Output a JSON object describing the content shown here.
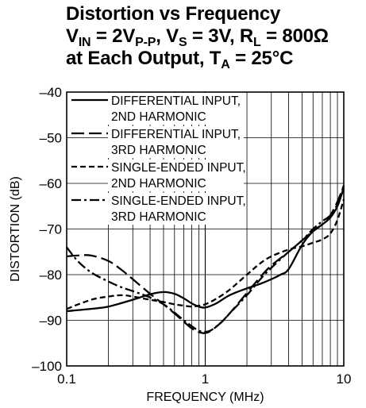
{
  "title": {
    "line1": "Distortion vs Frequency",
    "line2_prefix": "V",
    "line2_sub_in": "IN",
    "line2_mid": " = 2V",
    "line2_sub_pp": "P-P",
    "line2_mid2": ", V",
    "line2_sub_s": "S",
    "line2_mid3": " = 3V, R",
    "line2_sub_l": "L",
    "line2_end": " = 800Ω",
    "line3_prefix": "at Each Output, T",
    "line3_sub_a": "A",
    "line3_end": " = 25°C"
  },
  "chart_data": {
    "type": "line",
    "title": "Distortion vs Frequency",
    "xlabel": "FREQUENCY (MHz)",
    "ylabel": "DISTORTION (dB)",
    "xscale": "log",
    "xlim": [
      0.1,
      10
    ],
    "ylim": [
      -100,
      -40
    ],
    "grid": true,
    "legend_position": "top-left",
    "x_ticks": [
      {
        "value": 0.1,
        "label": "0.1"
      },
      {
        "value": 1,
        "label": "1"
      },
      {
        "value": 10,
        "label": "10"
      }
    ],
    "y_ticks": [
      {
        "value": -40,
        "label": "–40"
      },
      {
        "value": -50,
        "label": "–50"
      },
      {
        "value": -60,
        "label": "–60"
      },
      {
        "value": -70,
        "label": "–70"
      },
      {
        "value": -80,
        "label": "–80"
      },
      {
        "value": -90,
        "label": "–90"
      },
      {
        "value": -100,
        "label": "–100"
      }
    ],
    "series": [
      {
        "name": "DIFFERENTIAL INPUT, 2ND HARMONIC",
        "label_line1": "DIFFERENTIAL INPUT,",
        "label_line2": "2ND HARMONIC",
        "dash": "",
        "x": [
          0.1,
          0.15,
          0.2,
          0.3,
          0.4,
          0.5,
          0.6,
          0.7,
          0.8,
          0.9,
          1,
          1.2,
          1.5,
          2,
          2.5,
          3,
          3.5,
          4,
          5,
          6,
          7,
          8,
          9,
          10
        ],
        "y": [
          -88,
          -87.5,
          -87,
          -85.5,
          -84.3,
          -83.8,
          -84.2,
          -85.2,
          -86.3,
          -87,
          -87.2,
          -86.3,
          -84.5,
          -83,
          -82,
          -81,
          -80,
          -78.8,
          -73.5,
          -70.5,
          -69,
          -67.5,
          -65,
          -61
        ]
      },
      {
        "name": "DIFFERENTIAL INPUT, 3RD HARMONIC",
        "label_line1": "DIFFERENTIAL INPUT,",
        "label_line2": "3RD HARMONIC",
        "dash": "16,6",
        "x": [
          0.1,
          0.12,
          0.15,
          0.2,
          0.25,
          0.3,
          0.4,
          0.5,
          0.6,
          0.7,
          0.8,
          0.9,
          1,
          1.1,
          1.3,
          1.5,
          2,
          2.5,
          3,
          4,
          5,
          6,
          7,
          8,
          9,
          10
        ],
        "y": [
          -76,
          -75.8,
          -75.8,
          -77,
          -79,
          -81,
          -84.2,
          -86.5,
          -88.5,
          -90.3,
          -91.8,
          -92.6,
          -92.8,
          -92.3,
          -90.5,
          -88.5,
          -84,
          -80.5,
          -78,
          -75,
          -72.5,
          -70.5,
          -69,
          -67,
          -64,
          -60.5
        ]
      },
      {
        "name": "SINGLE-ENDED INPUT, 2ND HARMONIC",
        "label_line1": "SINGLE-ENDED INPUT,",
        "label_line2": "2ND HARMONIC",
        "dash": "7,4",
        "x": [
          0.1,
          0.15,
          0.2,
          0.25,
          0.3,
          0.4,
          0.5,
          0.6,
          0.7,
          0.8,
          0.9,
          1,
          1.2,
          1.5,
          2,
          2.5,
          3,
          4,
          5,
          6,
          7,
          8,
          9,
          10
        ],
        "y": [
          -87.5,
          -85.5,
          -84.8,
          -84.5,
          -84.8,
          -85.5,
          -86,
          -86.5,
          -86.8,
          -87,
          -86.8,
          -86.5,
          -85.3,
          -83.3,
          -80,
          -77.5,
          -76,
          -74.5,
          -73.8,
          -73,
          -72.3,
          -71,
          -68,
          -63.5
        ]
      },
      {
        "name": "SINGLE-ENDED INPUT, 3RD HARMONIC",
        "label_line1": "SINGLE-ENDED INPUT,",
        "label_line2": "3RD HARMONIC",
        "dash": "12,4,3,4",
        "x": [
          0.1,
          0.12,
          0.15,
          0.2,
          0.25,
          0.3,
          0.4,
          0.5,
          0.6,
          0.7,
          0.8,
          0.9,
          1,
          1.1,
          1.3,
          1.5,
          2,
          2.5,
          3,
          4,
          5,
          6,
          7,
          8,
          9,
          10
        ],
        "y": [
          -74,
          -77,
          -79.5,
          -81.5,
          -82.8,
          -83.6,
          -85,
          -86.5,
          -88.3,
          -90,
          -91.3,
          -92.3,
          -92.5,
          -92.2,
          -90.5,
          -88.5,
          -84.5,
          -81,
          -78.5,
          -75,
          -72.5,
          -70,
          -68.3,
          -67,
          -64.5,
          -60.5
        ]
      }
    ]
  }
}
